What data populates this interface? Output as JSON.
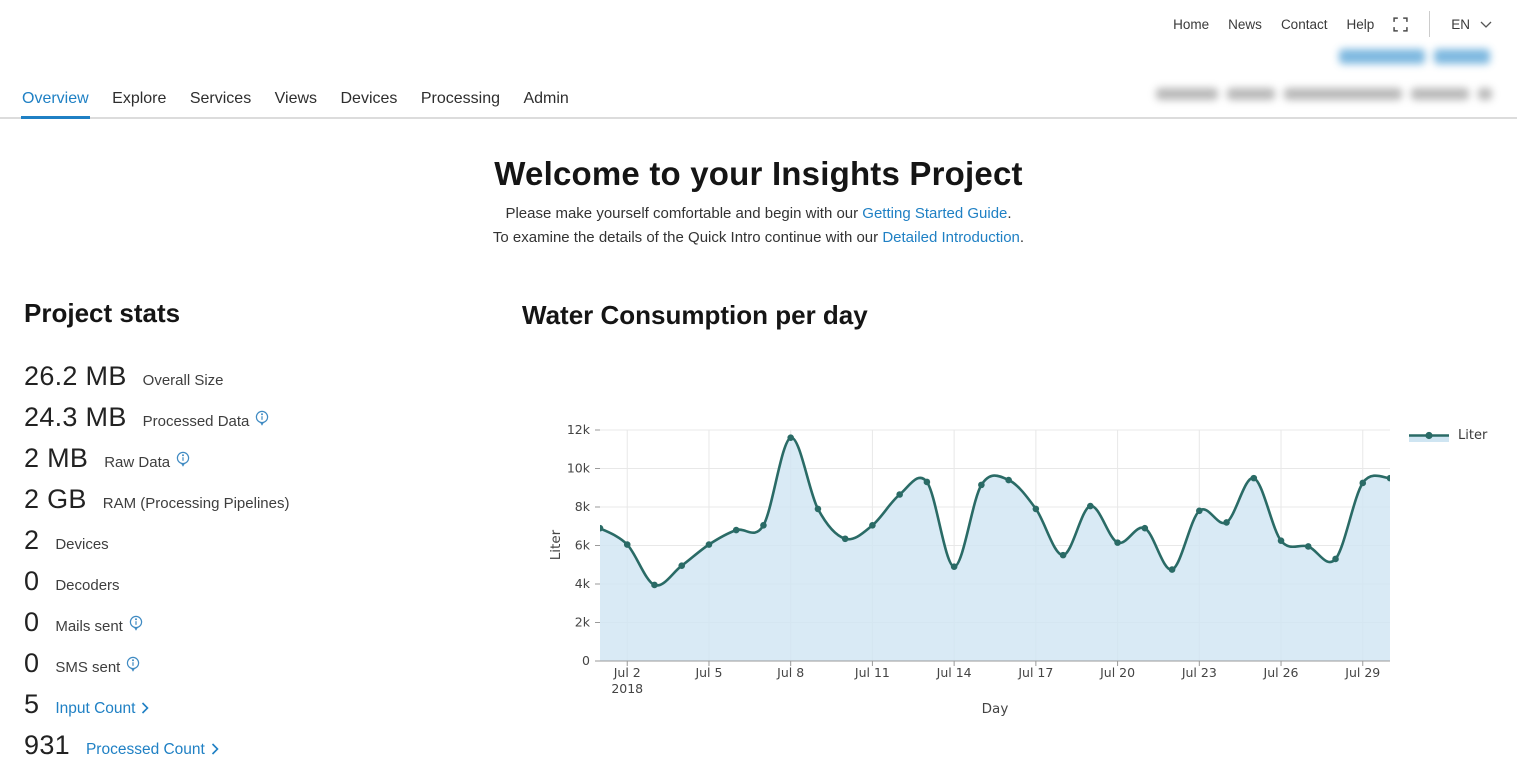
{
  "topbar": {
    "links": [
      "Home",
      "News",
      "Contact",
      "Help"
    ],
    "language": "EN"
  },
  "tabs": {
    "items": [
      {
        "label": "Overview",
        "active": true
      },
      {
        "label": "Explore"
      },
      {
        "label": "Services"
      },
      {
        "label": "Views"
      },
      {
        "label": "Devices"
      },
      {
        "label": "Processing"
      },
      {
        "label": "Admin"
      }
    ]
  },
  "welcome": {
    "title": "Welcome to your Insights Project",
    "line1_pre": "Please make yourself comfortable and begin with our ",
    "line1_link": "Getting Started Guide",
    "line1_post": ".",
    "line2_pre": "To examine the details of the Quick Intro continue with our ",
    "line2_link": "Detailed Introduction",
    "line2_post": "."
  },
  "stats": {
    "heading": "Project stats",
    "items": [
      {
        "value": "26.2 MB",
        "label": "Overall Size",
        "info": false,
        "link": false
      },
      {
        "value": "24.3 MB",
        "label": "Processed Data",
        "info": true,
        "link": false
      },
      {
        "value": "2 MB",
        "label": "Raw Data",
        "info": true,
        "link": false
      },
      {
        "value": "2 GB",
        "label": "RAM (Processing Pipelines)",
        "info": false,
        "link": false
      },
      {
        "value": "2",
        "label": "Devices",
        "info": false,
        "link": false
      },
      {
        "value": "0",
        "label": "Decoders",
        "info": false,
        "link": false
      },
      {
        "value": "0",
        "label": "Mails sent",
        "info": true,
        "link": false
      },
      {
        "value": "0",
        "label": "SMS sent",
        "info": true,
        "link": false
      },
      {
        "value": "5",
        "label": "Input Count",
        "info": false,
        "link": true
      },
      {
        "value": "931",
        "label": "Processed Count",
        "info": false,
        "link": true
      }
    ]
  },
  "chart_data": {
    "type": "area",
    "title": "Water Consumption per day",
    "xlabel": "Day",
    "ylabel": "Liter",
    "legend_label": "Liter",
    "x": [
      "Jul 1",
      "Jul 2",
      "Jul 3",
      "Jul 4",
      "Jul 5",
      "Jul 6",
      "Jul 7",
      "Jul 8",
      "Jul 9",
      "Jul 10",
      "Jul 11",
      "Jul 12",
      "Jul 13",
      "Jul 14",
      "Jul 15",
      "Jul 16",
      "Jul 17",
      "Jul 18",
      "Jul 19",
      "Jul 20",
      "Jul 21",
      "Jul 22",
      "Jul 23",
      "Jul 24",
      "Jul 25",
      "Jul 26",
      "Jul 27",
      "Jul 28",
      "Jul 29",
      "Jul 30"
    ],
    "values": [
      6900,
      6050,
      3950,
      4950,
      6050,
      6800,
      7050,
      11600,
      7900,
      6350,
      7050,
      8650,
      9300,
      4900,
      9150,
      9400,
      7900,
      5500,
      8050,
      6150,
      6900,
      4750,
      7800,
      7200,
      9500,
      6250,
      5950,
      5300,
      9250,
      9500
    ],
    "ylim": [
      0,
      12000
    ],
    "y_tick_labels": [
      "0",
      "2k",
      "4k",
      "6k",
      "8k",
      "10k",
      "12k"
    ],
    "x_tick_days": [
      2,
      5,
      8,
      11,
      14,
      17,
      20,
      23,
      26,
      29
    ],
    "x_tick_labels": [
      "Jul 2",
      "Jul 5",
      "Jul 8",
      "Jul 11",
      "Jul 14",
      "Jul 17",
      "Jul 20",
      "Jul 23",
      "Jul 26",
      "Jul 29"
    ],
    "year_label": "2018",
    "grid": true,
    "legend_position": "right",
    "line_color": "#2a6b66",
    "fill_color": "#cfe5f2",
    "grid_color": "#e8e8e8",
    "axis_color": "#9a9a9a",
    "tick_text_color": "#444444"
  }
}
